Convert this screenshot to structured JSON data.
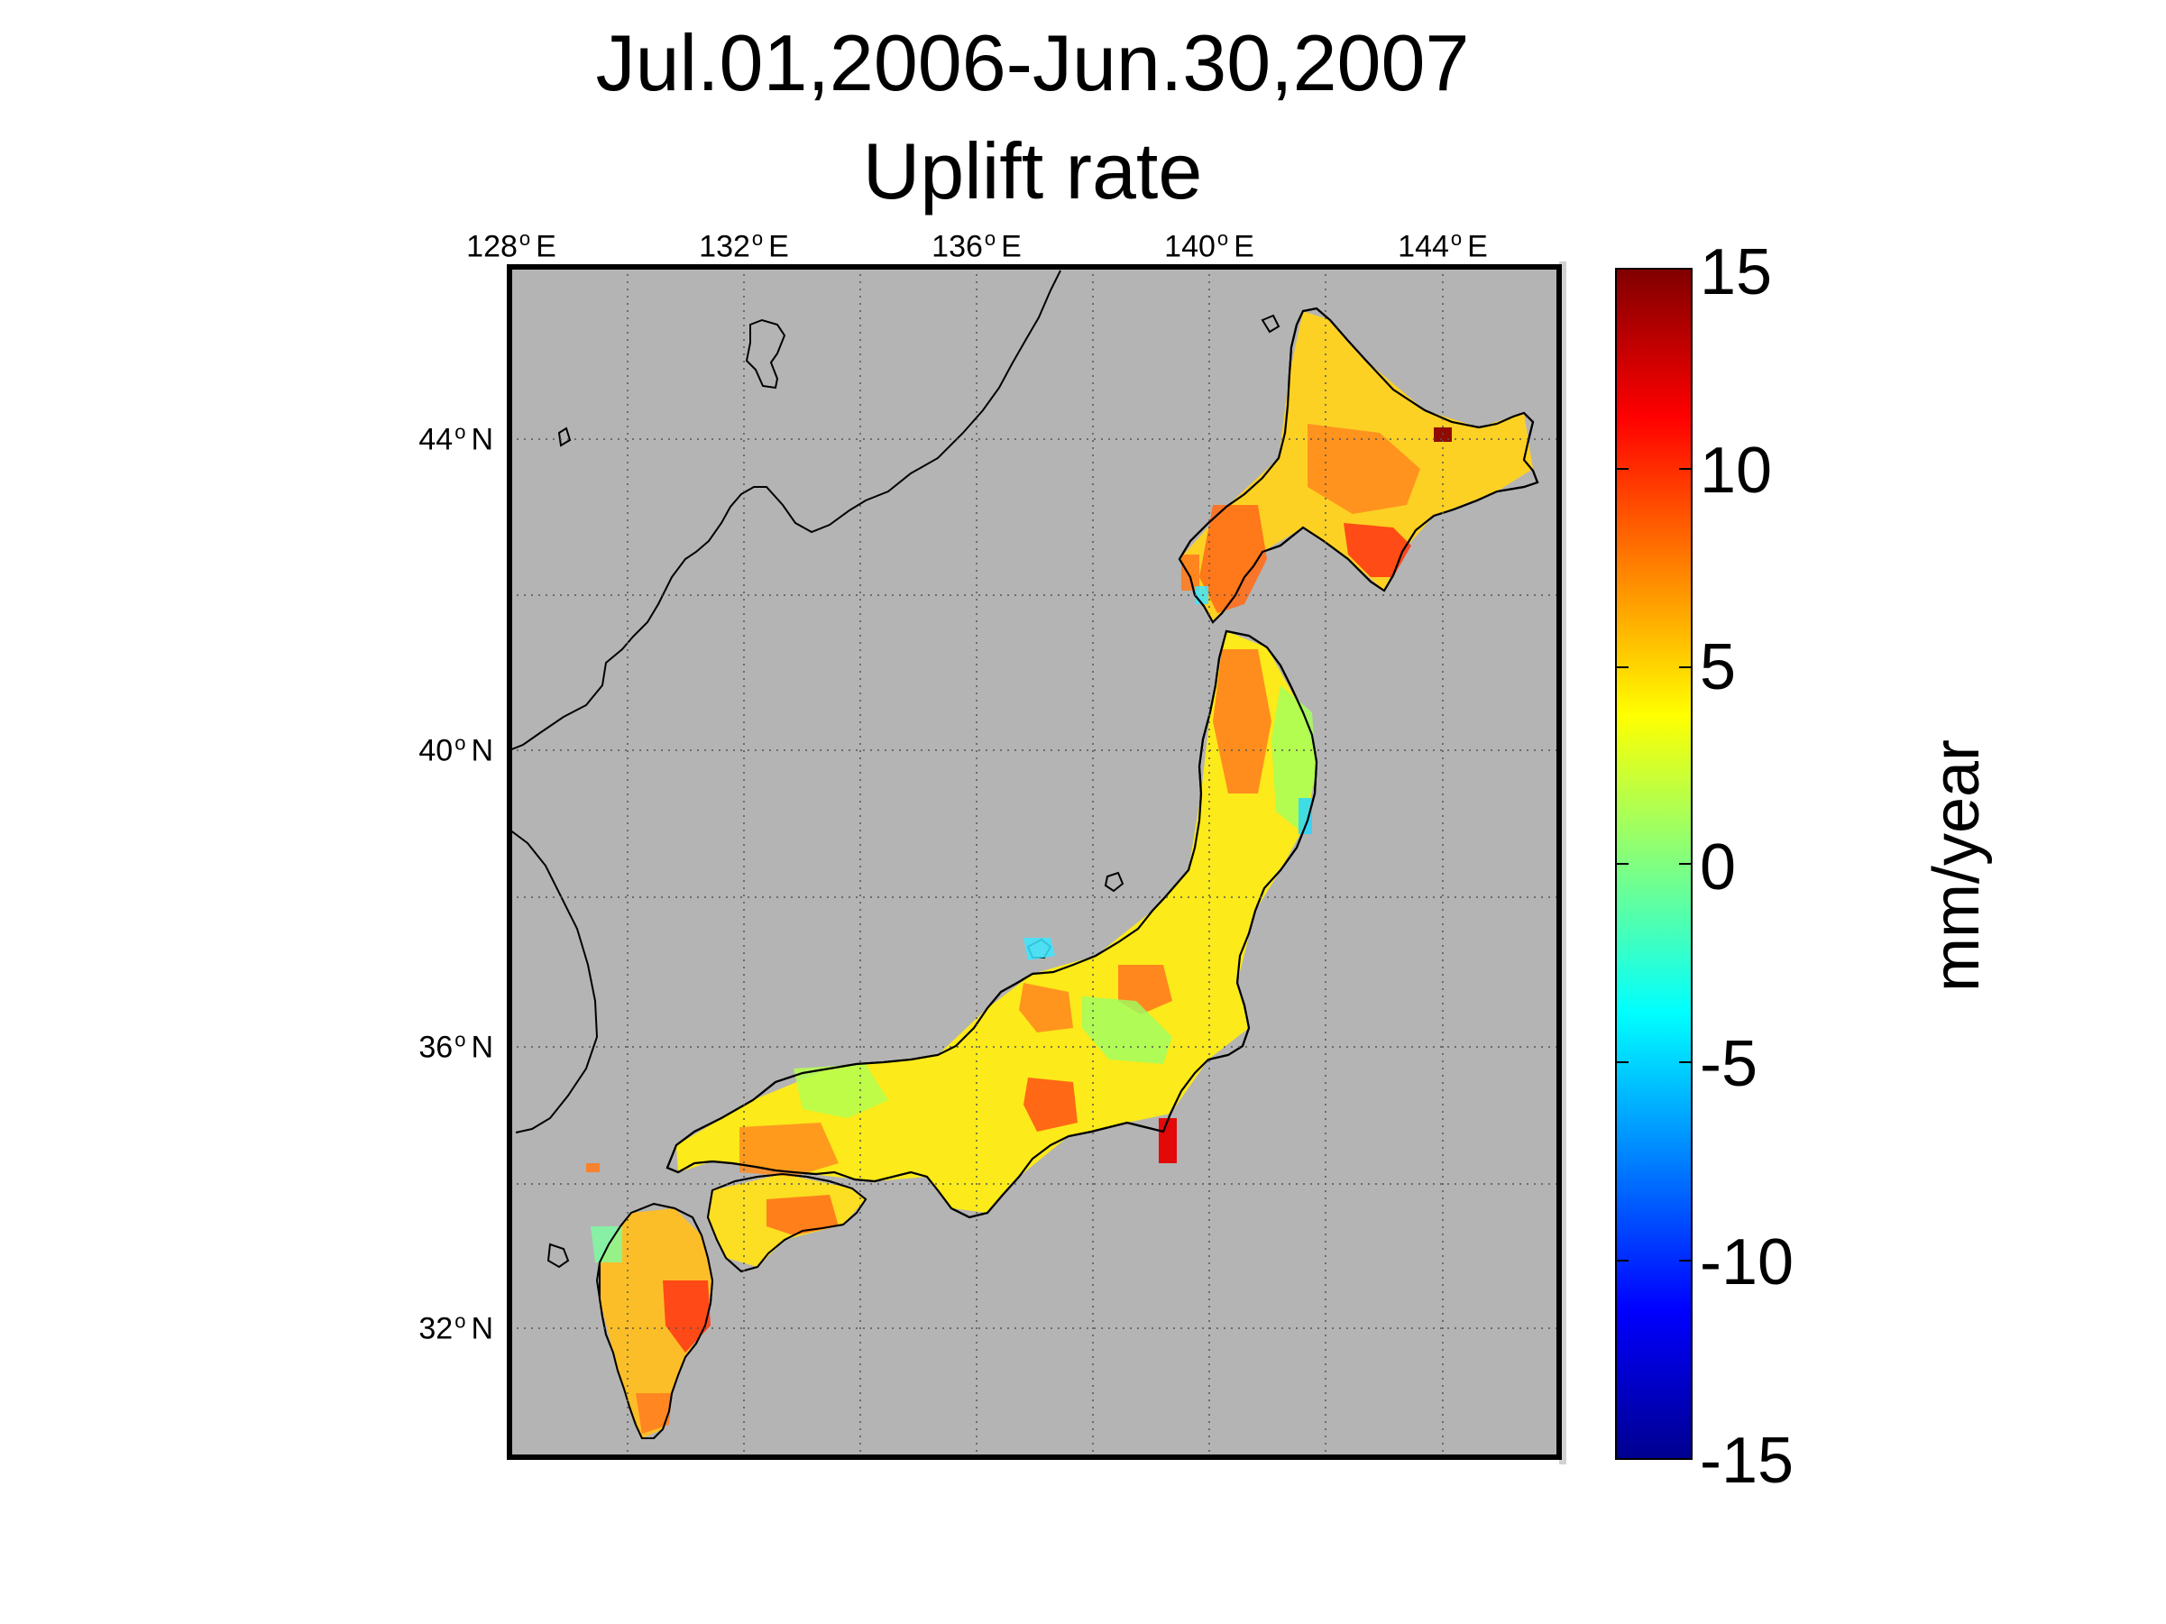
{
  "title_line1": "Jul.01,2006-Jun.30,2007",
  "title_line2": "Uplift rate",
  "lon_ticks": [
    {
      "value": 128,
      "text": "128",
      "hemi": "E"
    },
    {
      "value": 132,
      "text": "132",
      "hemi": "E"
    },
    {
      "value": 136,
      "text": "136",
      "hemi": "E"
    },
    {
      "value": 140,
      "text": "140",
      "hemi": "E"
    },
    {
      "value": 144,
      "text": "144",
      "hemi": "E"
    }
  ],
  "lat_ticks": [
    {
      "value": 44,
      "text": "44",
      "hemi": "N"
    },
    {
      "value": 40,
      "text": "40",
      "hemi": "N"
    },
    {
      "value": 36,
      "text": "36",
      "hemi": "N"
    },
    {
      "value": 32,
      "text": "32",
      "hemi": "N"
    }
  ],
  "colorbar": {
    "label": "mm/year",
    "ticks": [
      "15",
      "10",
      "5",
      "0",
      "-5",
      "-10",
      "-15"
    ],
    "min": -15,
    "max": 15,
    "colors": [
      "#00008f",
      "#0000ff",
      "#00ffff",
      "#ffff00",
      "#ff0000",
      "#800000"
    ]
  },
  "map": {
    "background_color": "#b4b4b4",
    "grid_style": "dotted",
    "lon_range": [
      128,
      146
    ],
    "lat_range": [
      29.5,
      46
    ]
  }
}
